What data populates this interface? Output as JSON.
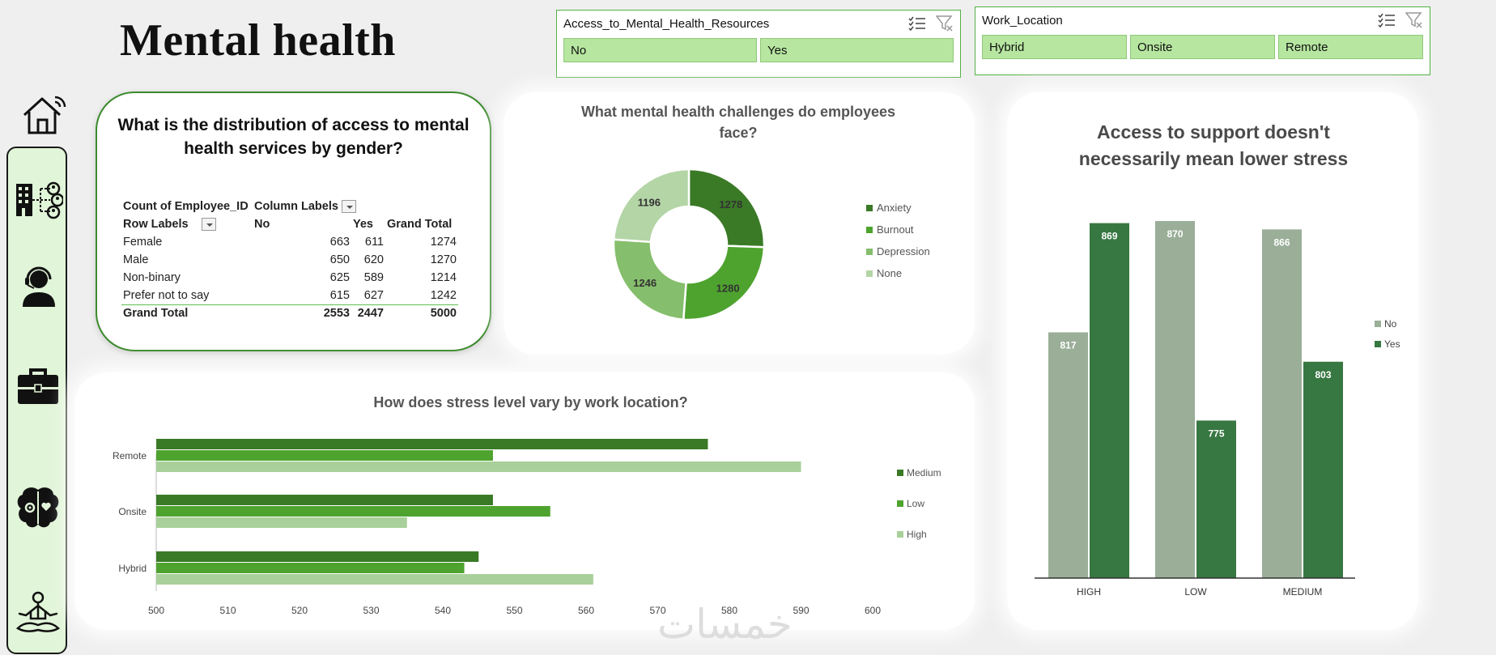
{
  "title": "Mental health",
  "slicers": [
    {
      "title": "Access_to_Mental_Health_Resources",
      "options": [
        "No",
        "Yes"
      ]
    },
    {
      "title": "Work_Location",
      "options": [
        "Hybrid",
        "Onsite",
        "Remote"
      ]
    }
  ],
  "sidebar": {
    "icons": [
      "home-icon",
      "organization-network-icon",
      "support-agent-icon",
      "briefcase-icon",
      "brain-icon",
      "meditation-icon"
    ]
  },
  "pivot": {
    "title": "What is the distribution of access to mental health services by gender?",
    "header1": {
      "measure": "Count of Employee_ID",
      "columns": "Column Labels"
    },
    "header2": {
      "rows": "Row Labels",
      "no": "No",
      "yes": "Yes",
      "total": "Grand Total"
    },
    "rows": [
      {
        "label": "Female",
        "no": "663",
        "yes": "611",
        "total": "1274"
      },
      {
        "label": "Male",
        "no": "650",
        "yes": "620",
        "total": "1270"
      },
      {
        "label": "Non-binary",
        "no": "625",
        "yes": "589",
        "total": "1214"
      },
      {
        "label": "Prefer not to say",
        "no": "615",
        "yes": "627",
        "total": "1242"
      }
    ],
    "grand": {
      "label": "Grand Total",
      "no": "2553",
      "yes": "2447",
      "total": "5000"
    }
  },
  "colors": {
    "dark": "#3a7a26",
    "mid": "#4ea32f",
    "light": "#85be6c",
    "pale": "#b4d5a6",
    "grey_green": "#9aae98",
    "col_dark": "#377741"
  },
  "chart_data": [
    {
      "type": "pie",
      "title": "What mental health challenges do employees face?",
      "categories": [
        "Anxiety",
        "Burnout",
        "Depression",
        "None"
      ],
      "values": [
        1278,
        1280,
        1246,
        1196
      ],
      "colors": [
        "#3a7a26",
        "#4ea32f",
        "#85be6c",
        "#b4d5a6"
      ]
    },
    {
      "type": "bar",
      "orientation": "horizontal",
      "title": "How does stress level vary by work location?",
      "categories": [
        "Remote",
        "Onsite",
        "Hybrid"
      ],
      "series": [
        {
          "name": "Medium",
          "values": [
            577,
            547,
            545
          ],
          "color": "#3a7a26"
        },
        {
          "name": "Low",
          "values": [
            547,
            555,
            543
          ],
          "color": "#4ea32f"
        },
        {
          "name": "High",
          "values": [
            590,
            535,
            561
          ],
          "color": "#a9d09a"
        }
      ],
      "xlim": [
        500,
        600
      ],
      "xticks": [
        "500",
        "510",
        "520",
        "530",
        "540",
        "550",
        "560",
        "570",
        "580",
        "590",
        "600"
      ]
    },
    {
      "type": "bar",
      "title": "Access to support doesn't necessarily mean lower stress",
      "categories": [
        "HIGH",
        "LOW",
        "MEDIUM"
      ],
      "series": [
        {
          "name": "No",
          "values": [
            817,
            870,
            866
          ],
          "color": "#9aae98"
        },
        {
          "name": "Yes",
          "values": [
            869,
            775,
            803
          ],
          "color": "#377741"
        }
      ],
      "ylim": [
        700,
        875
      ]
    }
  ],
  "watermark": "خمسات"
}
